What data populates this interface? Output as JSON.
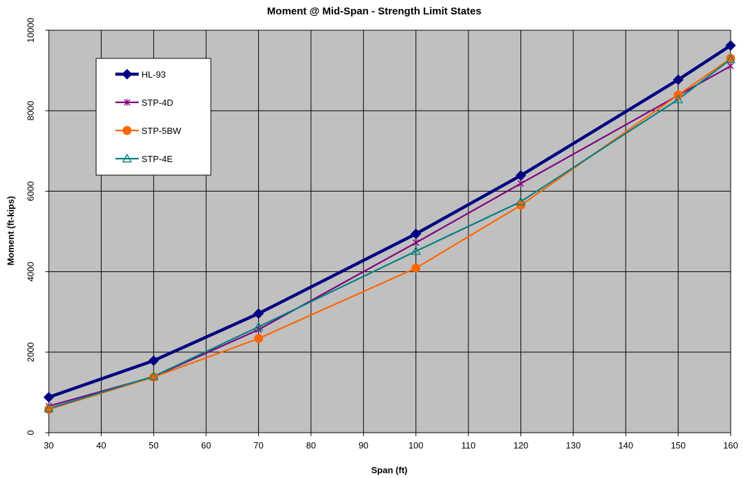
{
  "chart_data": {
    "type": "line",
    "title": "Moment @ Mid-Span - Strength Limit States",
    "xlabel": "Span (ft)",
    "ylabel": "Moment (ft-kips)",
    "xlim": [
      30,
      160
    ],
    "ylim": [
      0,
      10000
    ],
    "xticks": [
      30,
      40,
      50,
      60,
      70,
      80,
      90,
      100,
      110,
      120,
      130,
      140,
      150,
      160
    ],
    "yticks": [
      0,
      2000,
      4000,
      6000,
      8000,
      10000
    ],
    "grid": true,
    "legend_position": "top-left",
    "plot_background": "#c0c0c0",
    "x": [
      30,
      50,
      70,
      100,
      120,
      150,
      160
    ],
    "series": [
      {
        "name": "HL-93",
        "color": "#000080",
        "marker": "diamond",
        "values": [
          880,
          1790,
          2960,
          4940,
          6390,
          8770,
          9620
        ]
      },
      {
        "name": "STP-4D",
        "color": "#800080",
        "marker": "asterisk",
        "values": [
          660,
          1390,
          2560,
          4720,
          6190,
          8380,
          9110
        ]
      },
      {
        "name": "STP-5BW",
        "color": "#ff6600",
        "marker": "circle",
        "values": [
          580,
          1380,
          2340,
          4090,
          5650,
          8390,
          9300
        ]
      },
      {
        "name": "STP-4E",
        "color": "#008080",
        "marker": "triangle",
        "values": [
          600,
          1400,
          2630,
          4510,
          5740,
          8280,
          9280
        ]
      }
    ]
  }
}
